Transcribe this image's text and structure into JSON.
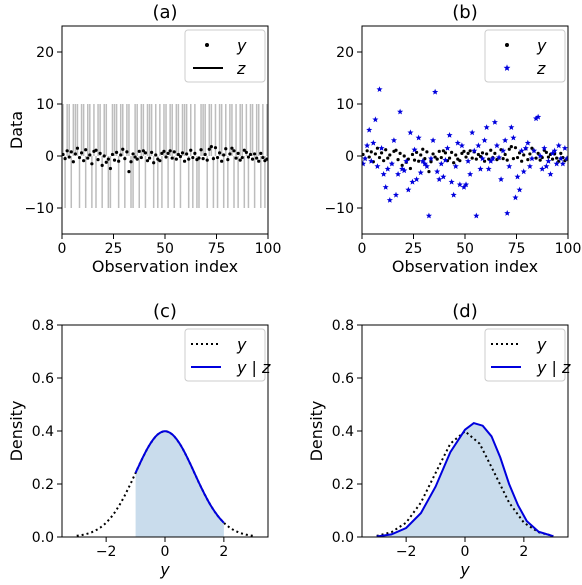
{
  "colors": {
    "black": "#000000",
    "blue": "#0000dd",
    "gray": "#bdbdbd",
    "fill": "#c9dcec"
  },
  "chart_data": [
    {
      "panel": "(a)",
      "type": "scatter",
      "title": "(a)",
      "xlabel": "Observation index",
      "ylabel": "Data",
      "xlim": [
        0,
        100
      ],
      "ylim": [
        -15,
        25
      ],
      "xticks": [
        "0",
        "25",
        "50",
        "75",
        "100"
      ],
      "yticks": [
        "20",
        "10",
        "0",
        "−10"
      ],
      "legend": {
        "position": "upper-right",
        "entries": [
          {
            "label": "y",
            "marker": "dot"
          },
          {
            "label": "z",
            "marker": "line"
          }
        ]
      },
      "series": [
        {
          "name": "y",
          "color": "#000000",
          "marker": "dot",
          "y": [
            0.3,
            -0.5,
            1.0,
            -0.2,
            0.8,
            -1.1,
            0.4,
            1.5,
            -0.3,
            0.6,
            -0.9,
            1.2,
            -0.4,
            0.2,
            -1.5,
            0.9,
            1.1,
            -0.7,
            0.5,
            -1.8,
            0.0,
            -1.2,
            -0.6,
            -2.4,
            0.3,
            -0.8,
            0.7,
            -1.0,
            0.2,
            1.3,
            -0.5,
            0.8,
            -3.0,
            -1.1,
            0.4,
            -0.2,
            -0.6,
            0.9,
            -0.3,
            1.0,
            0.6,
            -0.9,
            -0.4,
            0.7,
            -1.3,
            0.2,
            -0.6,
            -0.9,
            0.5,
            0.9,
            -0.2,
            0.5,
            1.0,
            -0.4,
            0.8,
            -0.6,
            0.3,
            -0.1,
            0.6,
            -1.0,
            0.4,
            -0.6,
            1.1,
            -0.3,
            0.5,
            -0.7,
            -0.4,
            1.2,
            -0.5,
            0.3,
            -0.8,
            1.3,
            1.8,
            -0.5,
            1.6,
            -0.3,
            0.6,
            -1.0,
            0.2,
            1.4,
            -0.7,
            0.4,
            1.5,
            1.0,
            -0.4,
            0.5,
            -0.8,
            -0.3,
            1.1,
            0.7,
            -0.2,
            0.3,
            -0.6,
            0.4,
            -0.4,
            -1.0,
            0.5,
            -0.3,
            -0.9,
            -0.6
          ]
        },
        {
          "name": "z",
          "color": "#bdbdbd",
          "marker": "bar",
          "y": [
            10,
            -10,
            10,
            10,
            -10,
            10,
            10,
            10,
            -10,
            10,
            10,
            -10,
            10,
            10,
            -10,
            10,
            -10,
            10,
            10,
            -10,
            10,
            10,
            -10,
            -10,
            10,
            10,
            10,
            -10,
            10,
            10,
            -10,
            10,
            10,
            -10,
            -10,
            10,
            10,
            -10,
            10,
            10,
            -10,
            10,
            10,
            10,
            -10,
            10,
            -10,
            10,
            -10,
            10,
            10,
            -10,
            10,
            10,
            -10,
            10,
            10,
            -10,
            10,
            10,
            10,
            -10,
            10,
            -10,
            10,
            -10,
            -10,
            10,
            10,
            10,
            -10,
            10,
            10,
            -10,
            10,
            -10,
            10,
            10,
            -10,
            10,
            -10,
            10,
            10,
            -10,
            10,
            -10,
            10,
            10,
            -10,
            10,
            -10,
            10,
            10,
            -10,
            10,
            10,
            -10,
            10,
            -10,
            10
          ]
        }
      ]
    },
    {
      "panel": "(b)",
      "type": "scatter",
      "title": "(b)",
      "xlabel": "Observation index",
      "ylabel": "",
      "xlim": [
        0,
        100
      ],
      "ylim": [
        -15,
        25
      ],
      "xticks": [
        "0",
        "25",
        "50",
        "75",
        "100"
      ],
      "yticks": [
        "20",
        "10",
        "0",
        "−10"
      ],
      "legend": {
        "position": "upper-right",
        "entries": [
          {
            "label": "y",
            "marker": "dot"
          },
          {
            "label": "z",
            "marker": "star"
          }
        ]
      },
      "series": [
        {
          "name": "y",
          "color": "#000000",
          "marker": "dot",
          "y": [
            0.3,
            -0.5,
            1.0,
            -0.2,
            0.8,
            -1.1,
            0.4,
            1.5,
            -0.3,
            0.6,
            -0.9,
            1.2,
            -0.4,
            0.2,
            -1.5,
            0.9,
            1.1,
            -0.7,
            0.5,
            -1.8,
            0.0,
            -1.2,
            -0.6,
            -2.4,
            0.3,
            -0.8,
            0.7,
            -1.0,
            0.2,
            1.3,
            -0.5,
            0.8,
            -3.0,
            -1.1,
            0.4,
            -0.2,
            -0.6,
            0.9,
            -0.3,
            1.0,
            0.6,
            -0.9,
            -0.4,
            0.7,
            -1.3,
            0.2,
            -0.6,
            -0.9,
            0.5,
            0.9,
            -0.2,
            0.5,
            1.0,
            -0.4,
            0.8,
            -0.6,
            0.3,
            -0.1,
            0.6,
            -1.0,
            0.4,
            -0.6,
            1.1,
            -0.3,
            0.5,
            -0.7,
            -0.4,
            1.2,
            -0.5,
            0.3,
            -0.8,
            1.3,
            1.8,
            -0.5,
            1.6,
            -0.3,
            0.6,
            -1.0,
            0.2,
            1.4,
            -0.7,
            0.4,
            1.5,
            1.0,
            -0.4,
            0.5,
            -0.8,
            -0.3,
            1.1,
            0.7,
            -0.2,
            0.3,
            -0.6,
            0.4,
            -0.4,
            -1.0,
            0.5,
            -0.3,
            -0.9,
            -0.6
          ]
        },
        {
          "name": "z",
          "color": "#0000dd",
          "marker": "star",
          "y": [
            -1.5,
            -0.5,
            2.0,
            5.0,
            -1.0,
            2.5,
            7.0,
            -2.0,
            12.8,
            1.5,
            -3.5,
            -6.0,
            -2.5,
            -8.5,
            -1.5,
            3.0,
            -7.5,
            -3.5,
            8.5,
            -2.5,
            -2.8,
            -1.0,
            -6.5,
            4.5,
            -5.0,
            1.2,
            -4.5,
            3.5,
            -3.2,
            -1.0,
            -1.5,
            -2.0,
            -11.5,
            -0.5,
            3.0,
            12.3,
            -3.0,
            -4.5,
            -1.5,
            -4.0,
            -0.8,
            1.5,
            4.0,
            -5.0,
            -7.5,
            -2.0,
            2.5,
            -5.5,
            2.0,
            -6.0,
            -5.5,
            -1.0,
            -3.5,
            4.5,
            1.0,
            -11.5,
            2.0,
            -2.5,
            -0.5,
            3.0,
            5.5,
            -2.5,
            -1.0,
            -0.5,
            6.5,
            2.0,
            -0.3,
            -4.5,
            1.0,
            3.0,
            -11.0,
            -2.0,
            5.5,
            3.5,
            -8.0,
            -4.0,
            -6.5,
            1.0,
            -3.0,
            1.5,
            2.5,
            -2.0,
            -0.5,
            1.0,
            7.2,
            7.5,
            0.0,
            -2.5,
            1.5,
            -2.0,
            -1.0,
            -3.5,
            0.5,
            1.0,
            -1.5,
            2.0,
            -0.5,
            -1.5,
            1.5,
            -0.5
          ]
        }
      ]
    },
    {
      "panel": "(c)",
      "type": "line",
      "title": "(c)",
      "xlabel": "y",
      "ylabel": "Density",
      "xlim": [
        -3.5,
        3.5
      ],
      "ylim": [
        0,
        0.8
      ],
      "xticks": [
        "−2",
        "0",
        "2"
      ],
      "yticks": [
        "0.8",
        "0.6",
        "0.4",
        "0.2",
        "0.0"
      ],
      "legend": {
        "position": "upper-right",
        "entries": [
          {
            "label": "y",
            "style": "dotted"
          },
          {
            "label": "y | z",
            "style": "solid"
          }
        ]
      },
      "series": [
        {
          "name": "y",
          "style": "dotted",
          "color": "#000000",
          "function": "standard normal pdf",
          "x_range": [
            -3,
            3
          ]
        },
        {
          "name": "y | z",
          "style": "solid",
          "color": "#0000dd",
          "function": "standard normal pdf truncated",
          "x_range": [
            -1,
            2
          ],
          "shaded": true
        }
      ]
    },
    {
      "panel": "(d)",
      "type": "line",
      "title": "(d)",
      "xlabel": "y",
      "ylabel": "Density",
      "xlim": [
        -3.5,
        3.5
      ],
      "ylim": [
        0,
        0.8
      ],
      "xticks": [
        "−2",
        "0",
        "2"
      ],
      "yticks": [
        "0.8",
        "0.6",
        "0.4",
        "0.2",
        "0.0"
      ],
      "legend": {
        "position": "upper-right",
        "entries": [
          {
            "label": "y",
            "style": "dotted"
          },
          {
            "label": "y | z",
            "style": "solid"
          }
        ]
      },
      "series": [
        {
          "name": "y",
          "style": "dotted",
          "color": "#000000",
          "points": [
            [
              -3,
              0.004
            ],
            [
              -2.5,
              0.018
            ],
            [
              -2,
              0.054
            ],
            [
              -1.5,
              0.13
            ],
            [
              -1,
              0.242
            ],
            [
              -0.5,
              0.352
            ],
            [
              0,
              0.399
            ],
            [
              0.5,
              0.352
            ],
            [
              1,
              0.242
            ],
            [
              1.5,
              0.13
            ],
            [
              2,
              0.054
            ],
            [
              2.5,
              0.018
            ],
            [
              3,
              0.004
            ]
          ]
        },
        {
          "name": "y | z",
          "style": "solid",
          "color": "#0000dd",
          "shaded": true,
          "points": [
            [
              -3,
              0.002
            ],
            [
              -2.5,
              0.01
            ],
            [
              -2,
              0.034
            ],
            [
              -1.5,
              0.09
            ],
            [
              -1,
              0.19
            ],
            [
              -0.5,
              0.32
            ],
            [
              0,
              0.405
            ],
            [
              0.3,
              0.43
            ],
            [
              0.6,
              0.42
            ],
            [
              0.9,
              0.38
            ],
            [
              1.2,
              0.3
            ],
            [
              1.5,
              0.2
            ],
            [
              1.8,
              0.12
            ],
            [
              2.1,
              0.06
            ],
            [
              2.5,
              0.02
            ],
            [
              3,
              0.003
            ]
          ]
        }
      ]
    }
  ]
}
